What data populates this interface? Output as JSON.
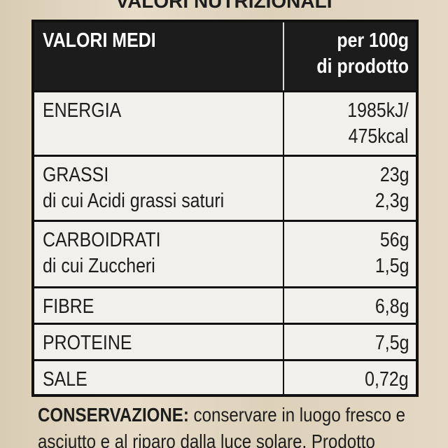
{
  "header": {
    "title": "VALORI NUTRIZIONALI"
  },
  "table": {
    "head": {
      "label": "VALORI MEDI",
      "value": [
        "per 100g",
        "di prodotto"
      ]
    },
    "rows": [
      {
        "label": [
          "ENERGIA"
        ],
        "value": [
          "1985kJ/",
          "475kcal"
        ]
      },
      {
        "label": [
          "GRASSI",
          "di cui Acidi grassi saturi"
        ],
        "value": [
          "23g",
          "2,3g"
        ]
      },
      {
        "label": [
          "CARBOIDRATI",
          "di cui Zuccheri"
        ],
        "value": [
          "56g",
          "1,5g"
        ]
      },
      {
        "label": [
          "FIBRE"
        ],
        "value": [
          "6,8g"
        ]
      },
      {
        "label": [
          "PROTEINE"
        ],
        "value": [
          "7,5g"
        ]
      },
      {
        "label": [
          "SALE"
        ],
        "value": [
          "0,72g"
        ]
      }
    ]
  },
  "footer": {
    "label": "CONSERVAZIONE:",
    "lines": [
      "conservare in luogo fresco e",
      "asciutto e al riparo dalla luce solare. Prodotto"
    ]
  }
}
